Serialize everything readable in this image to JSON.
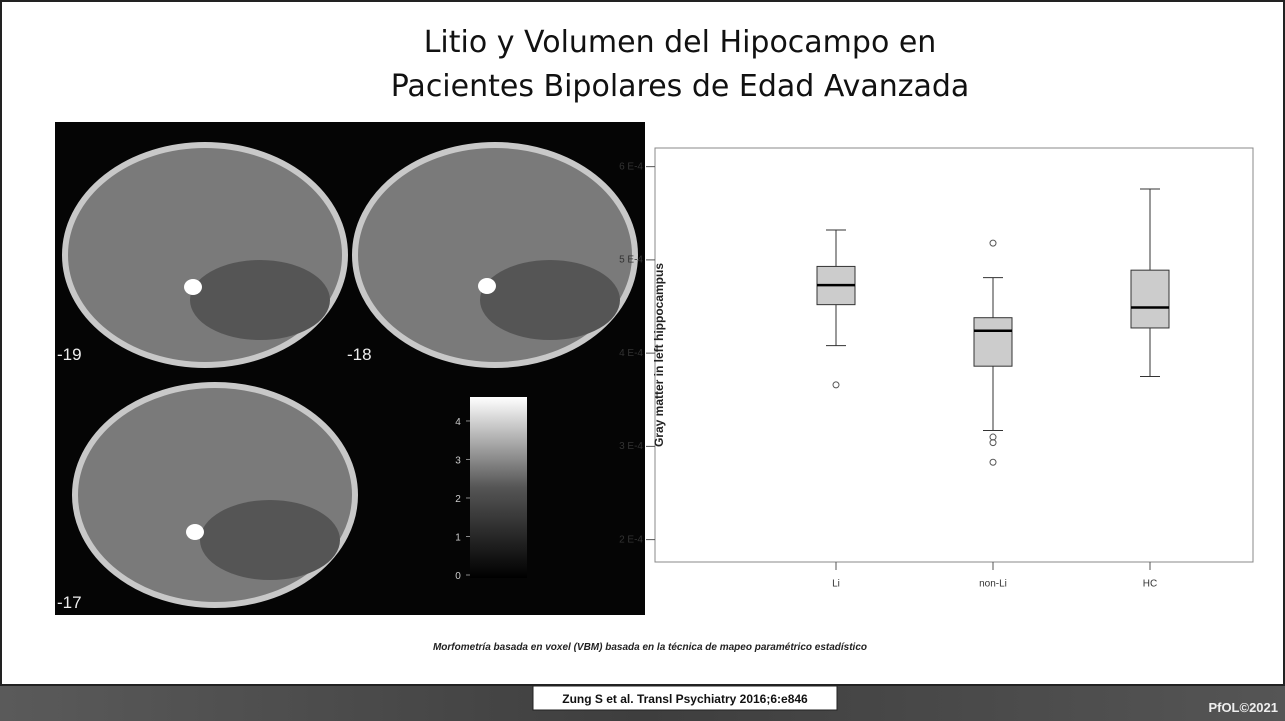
{
  "slide": {
    "title_lines": [
      "Litio y Volumen del Hipocampo en",
      "Pacientes Bipolares de Edad Avanzada"
    ],
    "caption": "Morfometría basada en voxel (VBM) basada en la técnica de mapeo paramétrico estadístico",
    "citation": "Zung S et al. Transl Psychiatry 2016;6:e846",
    "footer": "PfOL©2021"
  },
  "brain_panel": {
    "slice_labels": [
      "-19",
      "-18",
      "-17"
    ],
    "colorbar": {
      "lim": [
        0,
        4.7
      ],
      "ticks": [
        0,
        1,
        2,
        3,
        4
      ]
    }
  },
  "chart_data": {
    "type": "box",
    "ylabel": "Gray matter in left hippocampus",
    "categories": [
      "Li",
      "non-Li",
      "HC"
    ],
    "color": "#cccccc",
    "ylim": [
      0.000176,
      0.00062
    ],
    "yticks": [
      {
        "value": 0.0002,
        "label": "2 E-4"
      },
      {
        "value": 0.0003,
        "label": "3 E-4"
      },
      {
        "value": 0.0004,
        "label": "4 E-4"
      },
      {
        "value": 0.0005,
        "label": "5 E-4"
      },
      {
        "value": 0.0006,
        "label": "6 E-4"
      }
    ],
    "boxes": [
      {
        "whislo": 0.000408,
        "q1": 0.000452,
        "med": 0.000473,
        "q3": 0.000493,
        "whishi": 0.000532,
        "fliers": [
          0.000366
        ]
      },
      {
        "whislo": 0.000317,
        "q1": 0.000386,
        "med": 0.000424,
        "q3": 0.000438,
        "whishi": 0.000481,
        "fliers": [
          0.000518,
          0.00031,
          0.000304,
          0.000283
        ]
      },
      {
        "whislo": 0.000375,
        "q1": 0.000427,
        "med": 0.000449,
        "q3": 0.000489,
        "whishi": 0.000576,
        "fliers": []
      }
    ]
  }
}
